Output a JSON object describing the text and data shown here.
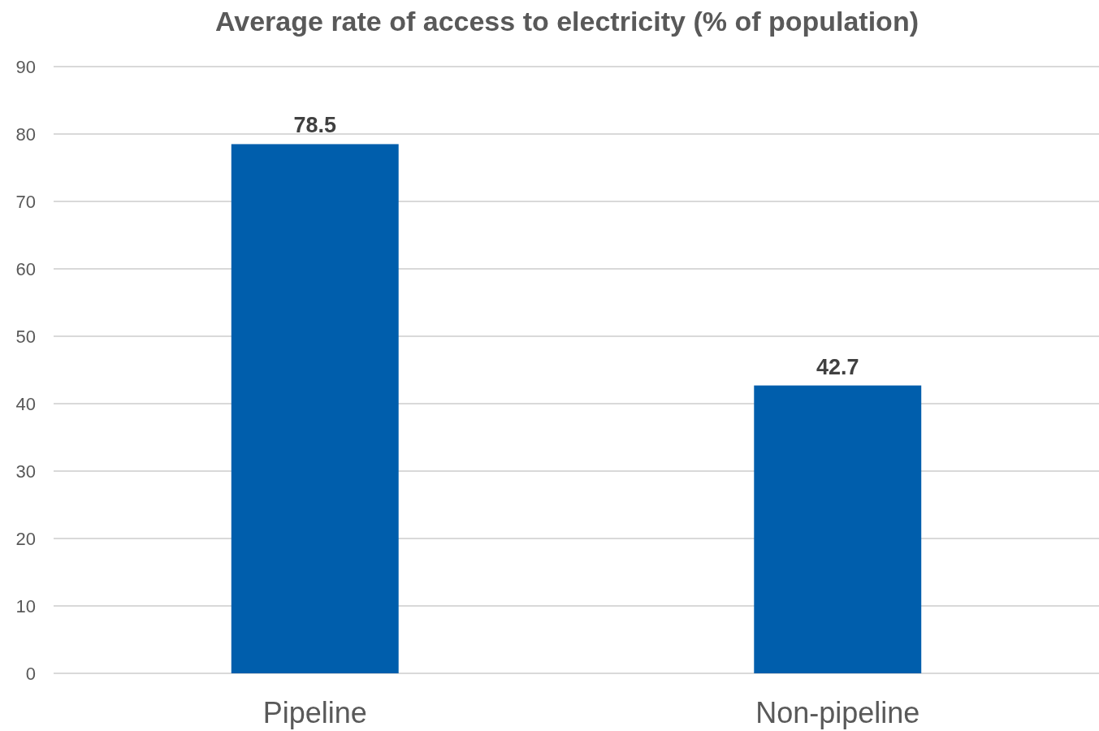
{
  "chart_data": {
    "type": "bar",
    "title": "Average rate of access to electricity (% of population)",
    "categories": [
      "Pipeline",
      "Non-pipeline"
    ],
    "values": [
      78.5,
      42.7
    ],
    "color": "#005eac",
    "ylim": [
      0,
      90
    ],
    "yticks": [
      0,
      10,
      20,
      30,
      40,
      50,
      60,
      70,
      80,
      90
    ],
    "grid": "y",
    "data_labels": true
  }
}
